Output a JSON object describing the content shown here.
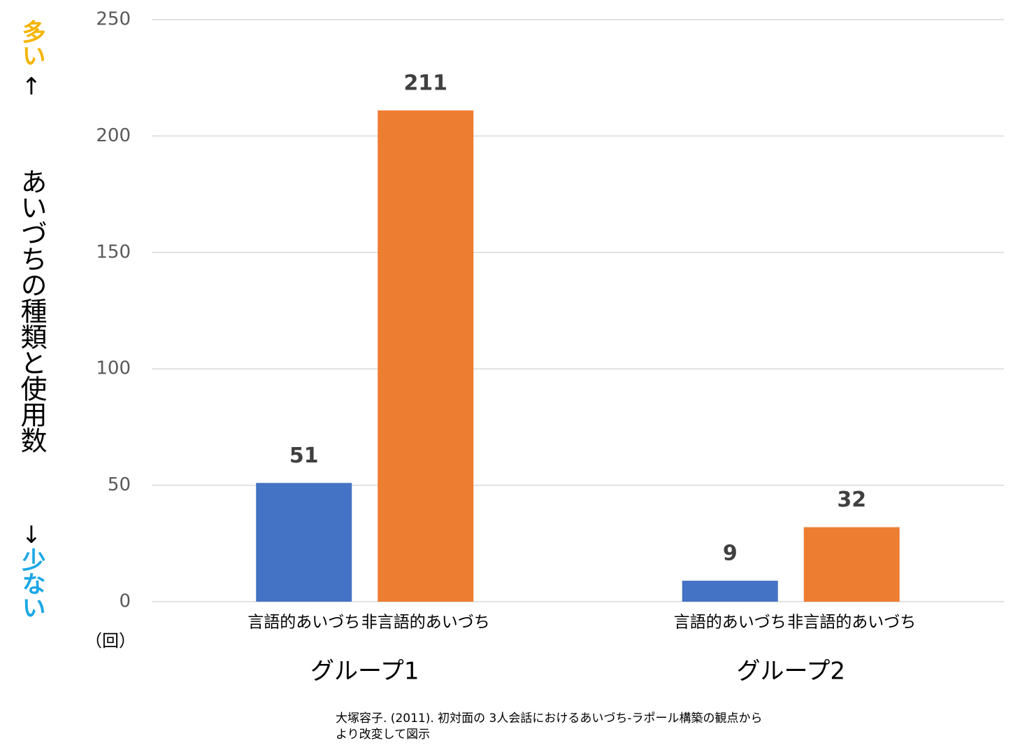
{
  "chart_data": {
    "type": "bar",
    "y_label": "あいづちの種類と使用数",
    "y_label_top": {
      "word": "多い",
      "arrow": "↑",
      "color": "#f5b400"
    },
    "y_label_bottom": {
      "word": "少ない",
      "arrow": "↓",
      "color": "#1aa7e6"
    },
    "unit": "（回）",
    "categories": [
      "グループ1",
      "グループ2"
    ],
    "series": [
      {
        "name": "言語的あいづち",
        "color": "#4472c4",
        "values": [
          51,
          9
        ]
      },
      {
        "name": "非言語的あいづち",
        "color": "#ed7d31",
        "values": [
          211,
          32
        ]
      }
    ],
    "ylim": [
      0,
      250
    ],
    "yticks": [
      0,
      50,
      100,
      150,
      200,
      250
    ],
    "grid": true,
    "source": [
      "大塚容子. (2011). 初対面の 3人会話におけるあいづち-ラポール構築の観点から",
      "より改変して図示"
    ]
  }
}
